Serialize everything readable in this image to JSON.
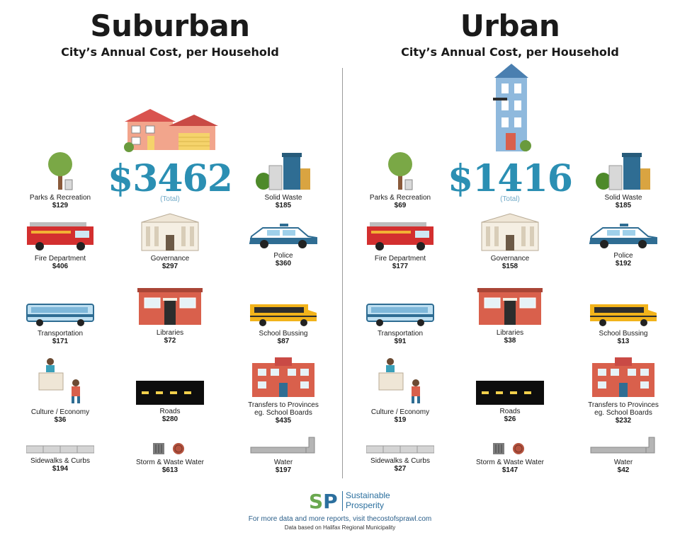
{
  "panels": [
    {
      "title": "Suburban",
      "subtitle": "City’s Annual Cost, per Household",
      "total": "$3462",
      "total_label": "(Total)",
      "items": [
        {
          "label": "Parks & Recreation",
          "value": "$129",
          "icon": "tree-icon"
        },
        {
          "label": "Solid Waste",
          "value": "$185",
          "icon": "garbage-bins-icon"
        },
        {
          "label": "Fire Department",
          "value": "$406",
          "icon": "fire-truck-icon"
        },
        {
          "label": "Governance",
          "value": "$297",
          "icon": "government-building-icon"
        },
        {
          "label": "Police",
          "value": "$360",
          "icon": "police-car-icon"
        },
        {
          "label": "Transportation",
          "value": "$171",
          "icon": "city-bus-icon"
        },
        {
          "label": "Libraries",
          "value": "$72",
          "icon": "library-building-icon"
        },
        {
          "label": "School Bussing",
          "value": "$87",
          "icon": "school-bus-icon"
        },
        {
          "label": "Culture / Economy",
          "value": "$36",
          "icon": "culture-people-icon"
        },
        {
          "label": "Roads",
          "value": "$280",
          "icon": "road-icon"
        },
        {
          "label": "Transfers to Provinces\neg. School Boards",
          "value": "$435",
          "icon": "school-building-icon"
        },
        {
          "label": "Sidewalks & Curbs",
          "value": "$194",
          "icon": "sidewalk-icon"
        },
        {
          "label": "Storm & Waste Water",
          "value": "$613",
          "icon": "storm-drain-icon"
        },
        {
          "label": "Water",
          "value": "$197",
          "icon": "water-pipe-icon"
        }
      ]
    },
    {
      "title": "Urban",
      "subtitle": "City’s Annual Cost, per Household",
      "total": "$1416",
      "total_label": "(Total)",
      "items": [
        {
          "label": "Parks & Recreation",
          "value": "$69",
          "icon": "tree-icon"
        },
        {
          "label": "Solid Waste",
          "value": "$185",
          "icon": "garbage-bins-icon"
        },
        {
          "label": "Fire Department",
          "value": "$177",
          "icon": "fire-truck-icon"
        },
        {
          "label": "Governance",
          "value": "$158",
          "icon": "government-building-icon"
        },
        {
          "label": "Police",
          "value": "$192",
          "icon": "police-car-icon"
        },
        {
          "label": "Transportation",
          "value": "$91",
          "icon": "city-bus-icon"
        },
        {
          "label": "Libraries",
          "value": "$38",
          "icon": "library-building-icon"
        },
        {
          "label": "School Bussing",
          "value": "$13",
          "icon": "school-bus-icon"
        },
        {
          "label": "Culture / Economy",
          "value": "$19",
          "icon": "culture-people-icon"
        },
        {
          "label": "Roads",
          "value": "$26",
          "icon": "road-icon"
        },
        {
          "label": "Transfers to Provinces\neg. School Boards",
          "value": "$232",
          "icon": "school-building-icon"
        },
        {
          "label": "Sidewalks & Curbs",
          "value": "$27",
          "icon": "sidewalk-icon"
        },
        {
          "label": "Storm & Waste Water",
          "value": "$147",
          "icon": "storm-drain-icon"
        },
        {
          "label": "Water",
          "value": "$42",
          "icon": "water-pipe-icon"
        }
      ]
    }
  ],
  "footer": {
    "logo_mark_s": "S",
    "logo_mark_p": "P",
    "logo_line1": "Sustainable",
    "logo_line2": "Prosperity",
    "note": "For more data and more reports, visit thecostofsprawl.com",
    "source": "Data based on Halifax Regional Municipality"
  },
  "colors": {
    "total": "#2b8fb3",
    "logo_green": "#6aa84f",
    "logo_blue": "#2b6f9e"
  }
}
